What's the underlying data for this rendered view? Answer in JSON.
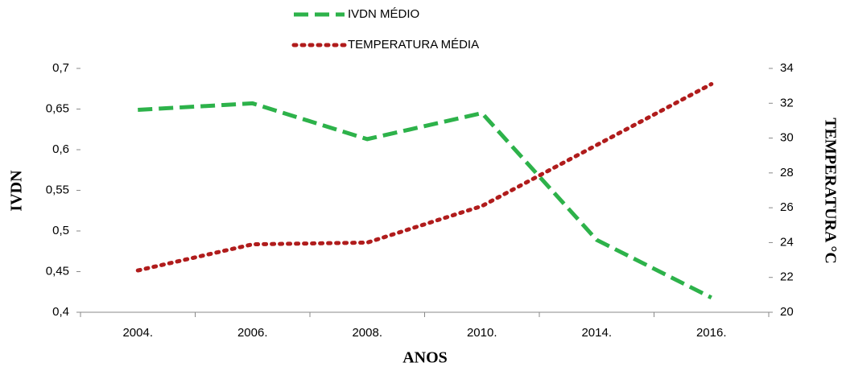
{
  "chart_data": {
    "type": "line",
    "categories": [
      "2004.",
      "2006.",
      "2008.",
      "2010.",
      "2014.",
      "2016."
    ],
    "series": [
      {
        "name": "IVDN MÉDIO",
        "color": "#2db24a",
        "dash": "dashed",
        "values": [
          0.649,
          0.657,
          0.613,
          0.645,
          0.489,
          0.418
        ]
      },
      {
        "name": "TEMPERATURA MÉDIA",
        "color": "#b01c1c",
        "dash": "dotted",
        "axis": "y2",
        "values": [
          22.4,
          23.9,
          24.0,
          26.1,
          29.6,
          33.1
        ]
      }
    ],
    "xlabel": "ANOS",
    "ylabel": "IVDN",
    "y2label": "TEMPERATURA °C",
    "ylim": [
      0.4,
      0.7
    ],
    "yticks": [
      {
        "value": 0.4,
        "label": "0,4"
      },
      {
        "value": 0.45,
        "label": "0,45"
      },
      {
        "value": 0.5,
        "label": "0,5"
      },
      {
        "value": 0.55,
        "label": "0,55"
      },
      {
        "value": 0.6,
        "label": "0,6"
      },
      {
        "value": 0.65,
        "label": "0,65"
      },
      {
        "value": 0.7,
        "label": "0,7"
      }
    ],
    "y2lim": [
      20,
      34
    ],
    "y2ticks": [
      20,
      22,
      24,
      26,
      28,
      30,
      32,
      34
    ],
    "legend": "top"
  }
}
